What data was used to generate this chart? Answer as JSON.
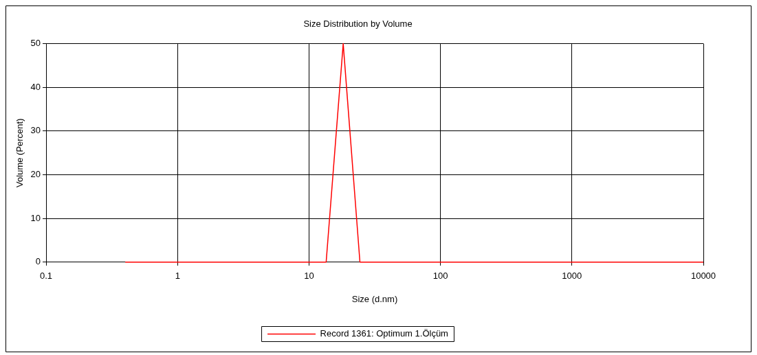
{
  "chart_data": {
    "type": "line",
    "title": "Size Distribution by Volume",
    "xlabel": "Size (d.nm)",
    "ylabel": "Volume (Percent)",
    "log": "x",
    "xlim": [
      0.1,
      10000
    ],
    "xticks": [
      0.1,
      1,
      10,
      100,
      1000,
      10000
    ],
    "ylim": [
      0,
      50
    ],
    "yticks": [
      0,
      10,
      20,
      30,
      40,
      50
    ],
    "series": [
      {
        "name": "Record 1361: Optimum 1.Ölçüm",
        "color": "#ff0000",
        "x": [
          0.4,
          13.5,
          18.2,
          24.4,
          10000
        ],
        "values": [
          0,
          0,
          50,
          0,
          0
        ]
      }
    ],
    "grid": true,
    "legend": "bottom",
    "marker": "none",
    "line_style": "solid"
  }
}
